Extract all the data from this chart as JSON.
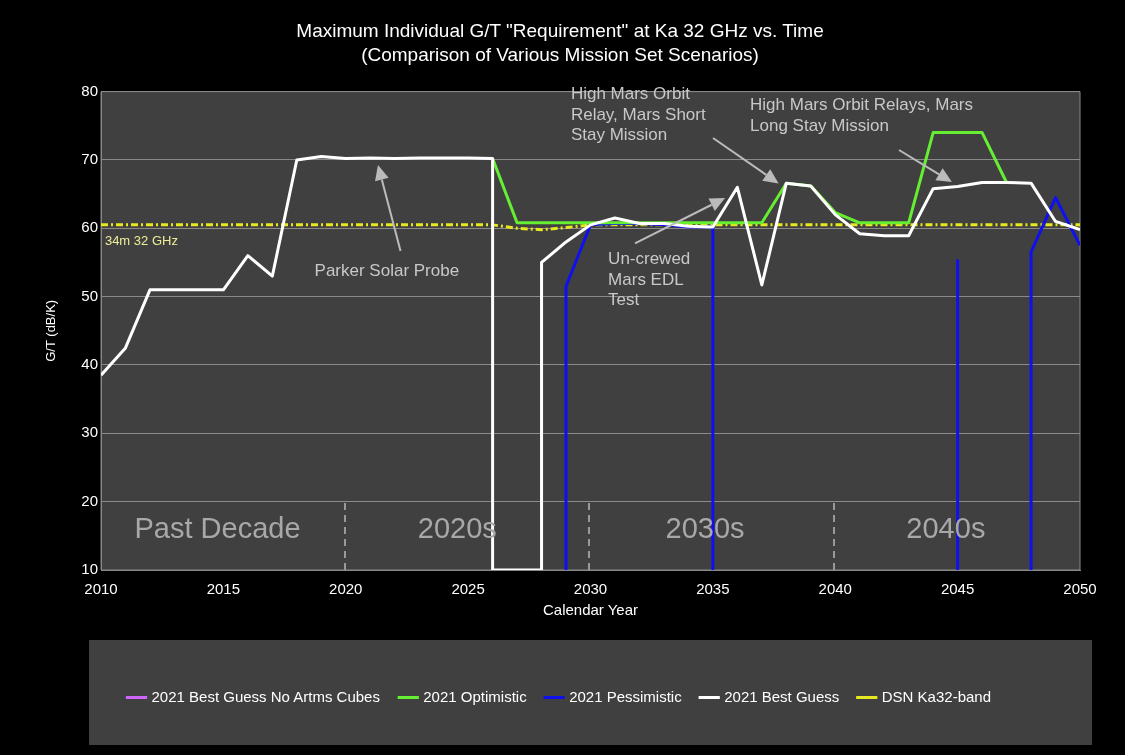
{
  "chart_data": {
    "type": "line",
    "title": "Maximum Individual G/T \"Requirement\" at Ka 32 GHz vs. Time",
    "subtitle": "(Comparison of Various Mission Set Scenarios)",
    "xlabel": "Calendar Year",
    "ylabel": "G/T (dB/K)",
    "xlim": [
      2010,
      2050
    ],
    "xticks": [
      2010,
      2015,
      2020,
      2025,
      2030,
      2035,
      2040,
      2045,
      2050
    ],
    "ylim": [
      10,
      80
    ],
    "yticks": [
      10,
      20,
      30,
      40,
      50,
      60,
      70,
      80
    ],
    "grid": "y",
    "legend": "bottom",
    "series": [
      {
        "name": "2021 Best Guess No Artms Cubes",
        "color": "#cc66ff"
      },
      {
        "name": "2021 Optimistic",
        "color": "#66ee33",
        "x": [
          2026,
          2027,
          2028,
          2029,
          2030,
          2031,
          2032,
          2033,
          2034,
          2035,
          2036,
          2037,
          2038,
          2039,
          2040,
          2041,
          2042,
          2043,
          2044,
          2045,
          2046,
          2047
        ],
        "values": [
          70.2,
          60.8,
          60.8,
          60.8,
          60.8,
          60.8,
          60.8,
          60.8,
          60.8,
          60.8,
          60.8,
          60.8,
          66.6,
          66.2,
          62.3,
          60.8,
          60.8,
          60.8,
          74,
          74,
          74,
          66.7
        ]
      },
      {
        "name": "2021 Pessimistic",
        "color": "#1010ee",
        "x": [
          2029,
          2029,
          2030,
          2031,
          2032,
          2033,
          2034,
          2035,
          2035,
          2040,
          2045,
          2045,
          2046,
          2048,
          2048,
          2049,
          2050
        ],
        "values": [
          10,
          51.5,
          60.5,
          60.7,
          60.7,
          60.5,
          60.2,
          60.2,
          10,
          null,
          55.3,
          10,
          null,
          10,
          56.5,
          64.5,
          57.5
        ]
      },
      {
        "name": "2021 Best Guess",
        "color": "#ffffff",
        "x": [
          2010,
          2011,
          2012,
          2013,
          2014,
          2015,
          2016,
          2017,
          2018,
          2019,
          2020,
          2021,
          2022,
          2023,
          2024,
          2025,
          2026,
          2026,
          2028,
          2028,
          2029,
          2030,
          2031,
          2032,
          2033,
          2034,
          2035,
          2036,
          2037,
          2038,
          2039,
          2040,
          2041,
          2042,
          2043,
          2044,
          2045,
          2046,
          2047,
          2048,
          2049,
          2050
        ],
        "values": [
          38.5,
          42.5,
          51,
          51,
          51,
          51,
          56,
          53,
          70,
          70.5,
          70.2,
          70.3,
          70.2,
          70.3,
          70.3,
          70.3,
          70.2,
          10,
          10,
          55,
          58,
          60.5,
          61.5,
          60.7,
          60.7,
          60.3,
          60.2,
          66,
          51.7,
          66.6,
          66.2,
          62,
          59.2,
          58.9,
          58.9,
          65.8,
          66.1,
          66.7,
          66.7,
          66.6,
          61,
          59.8
        ]
      },
      {
        "name": "DSN Ka32-band",
        "color": "#e8e820",
        "line_style": "dashed",
        "x": [
          2010,
          2026,
          2027,
          2028,
          2029,
          2030,
          2050
        ],
        "values": [
          60.5,
          60.5,
          60,
          59.8,
          60.1,
          60.5,
          60.5
        ]
      }
    ],
    "annotations": [
      "34m 32 GHz",
      "Parker Solar Probe",
      "Un-crewed Mars EDL Test",
      "High Mars Orbit Relay, Mars Short Stay Mission",
      "High Mars Orbit Relays, Mars Long Stay Mission",
      "Past Decade",
      "2020s",
      "2030s",
      "2040s"
    ]
  }
}
